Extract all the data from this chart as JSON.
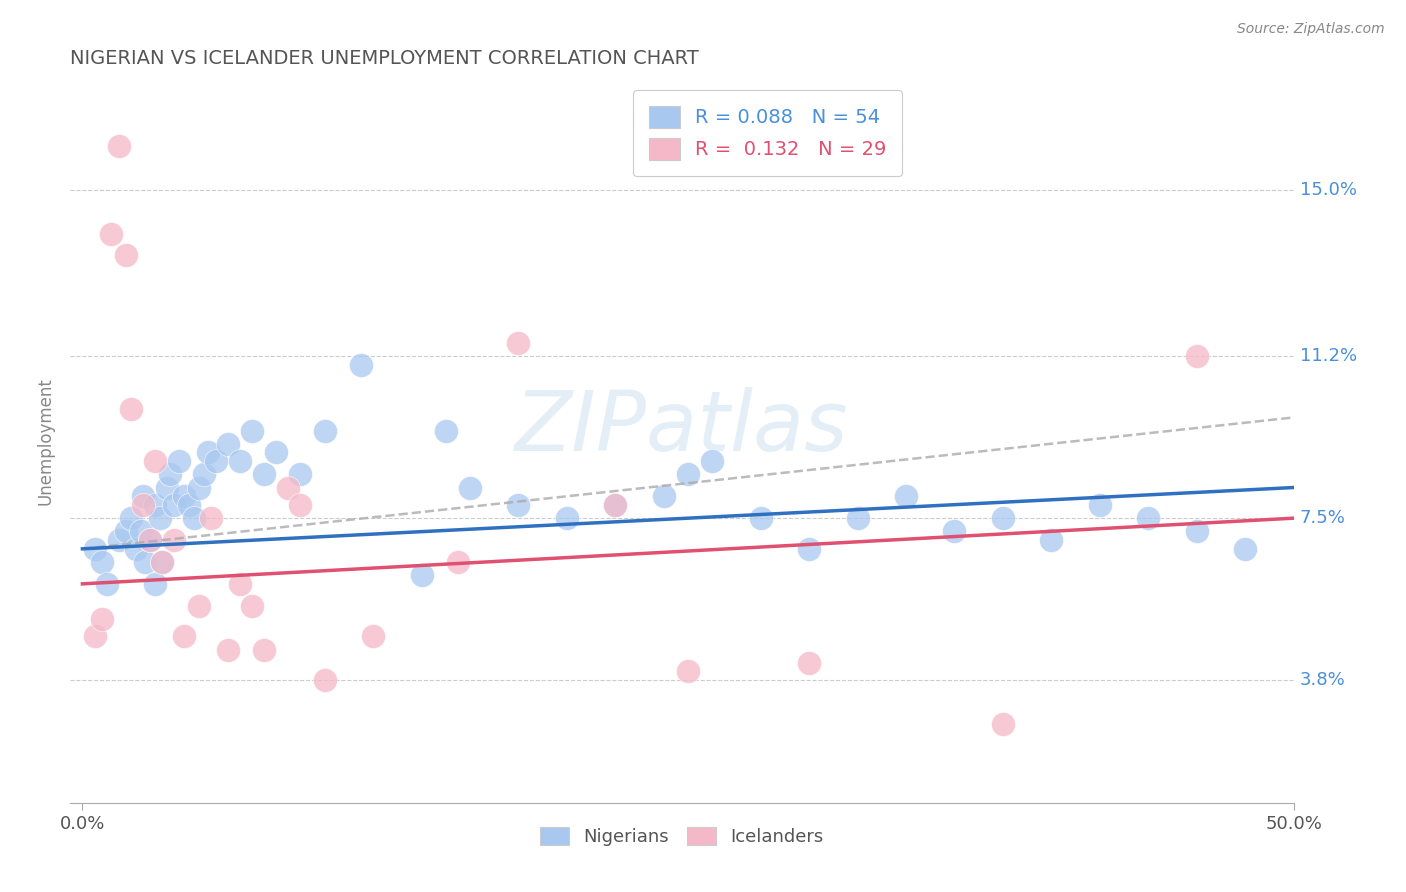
{
  "title": "NIGERIAN VS ICELANDER UNEMPLOYMENT CORRELATION CHART",
  "source_text": "Source: ZipAtlas.com",
  "ylabel": "Unemployment",
  "xlim": [
    -0.005,
    0.5
  ],
  "ylim": [
    0.01,
    0.175
  ],
  "ytick_positions": [
    0.038,
    0.075,
    0.112,
    0.15
  ],
  "ytick_labels": [
    "3.8%",
    "7.5%",
    "11.2%",
    "15.0%"
  ],
  "xtick_positions": [
    0.0,
    0.5
  ],
  "xtick_labels": [
    "0.0%",
    "50.0%"
  ],
  "watermark": "ZIPatlas",
  "legend_label1": "R = 0.088   N = 54",
  "legend_label2": "R =  0.132   N = 29",
  "legend_color1": "#a8c8f0",
  "legend_color2": "#f5b8c8",
  "legend_text_color1": "#4a90d9",
  "legend_text_color2": "#e05070",
  "nigerians_x": [
    0.005,
    0.008,
    0.01,
    0.015,
    0.018,
    0.02,
    0.022,
    0.024,
    0.025,
    0.026,
    0.028,
    0.03,
    0.03,
    0.032,
    0.033,
    0.035,
    0.036,
    0.038,
    0.04,
    0.042,
    0.044,
    0.046,
    0.048,
    0.05,
    0.052,
    0.055,
    0.06,
    0.065,
    0.07,
    0.075,
    0.08,
    0.09,
    0.1,
    0.115,
    0.14,
    0.16,
    0.18,
    0.2,
    0.22,
    0.24,
    0.25,
    0.26,
    0.28,
    0.3,
    0.32,
    0.34,
    0.36,
    0.38,
    0.4,
    0.42,
    0.44,
    0.46,
    0.48,
    0.15
  ],
  "nigerians_y": [
    0.068,
    0.065,
    0.06,
    0.07,
    0.072,
    0.075,
    0.068,
    0.072,
    0.08,
    0.065,
    0.07,
    0.078,
    0.06,
    0.075,
    0.065,
    0.082,
    0.085,
    0.078,
    0.088,
    0.08,
    0.078,
    0.075,
    0.082,
    0.085,
    0.09,
    0.088,
    0.092,
    0.088,
    0.095,
    0.085,
    0.09,
    0.085,
    0.095,
    0.11,
    0.062,
    0.082,
    0.078,
    0.075,
    0.078,
    0.08,
    0.085,
    0.088,
    0.075,
    0.068,
    0.075,
    0.08,
    0.072,
    0.075,
    0.07,
    0.078,
    0.075,
    0.072,
    0.068,
    0.095
  ],
  "nigerians_color": "#a8c8f0",
  "nigerians_trend_x": [
    0.0,
    0.5
  ],
  "nigerians_trend_y": [
    0.068,
    0.082
  ],
  "nigerians_line_color": "#3070c0",
  "nigerians_dashed_trend_y": [
    0.068,
    0.098
  ],
  "icelanders_x": [
    0.005,
    0.008,
    0.012,
    0.015,
    0.018,
    0.02,
    0.025,
    0.028,
    0.03,
    0.033,
    0.038,
    0.042,
    0.048,
    0.053,
    0.06,
    0.065,
    0.07,
    0.075,
    0.085,
    0.09,
    0.1,
    0.12,
    0.155,
    0.18,
    0.22,
    0.3,
    0.38,
    0.46,
    0.25
  ],
  "icelanders_y": [
    0.048,
    0.052,
    0.14,
    0.16,
    0.135,
    0.1,
    0.078,
    0.07,
    0.088,
    0.065,
    0.07,
    0.048,
    0.055,
    0.075,
    0.045,
    0.06,
    0.055,
    0.045,
    0.082,
    0.078,
    0.038,
    0.048,
    0.065,
    0.115,
    0.078,
    0.042,
    0.028,
    0.112,
    0.04
  ],
  "icelanders_color": "#f5b8c8",
  "icelanders_trend_x": [
    0.0,
    0.5
  ],
  "icelanders_trend_y": [
    0.06,
    0.075
  ],
  "icelanders_line_color": "#e05070",
  "title_color": "#555555",
  "title_fontsize": 14,
  "background_color": "#ffffff",
  "grid_color": "#cccccc"
}
